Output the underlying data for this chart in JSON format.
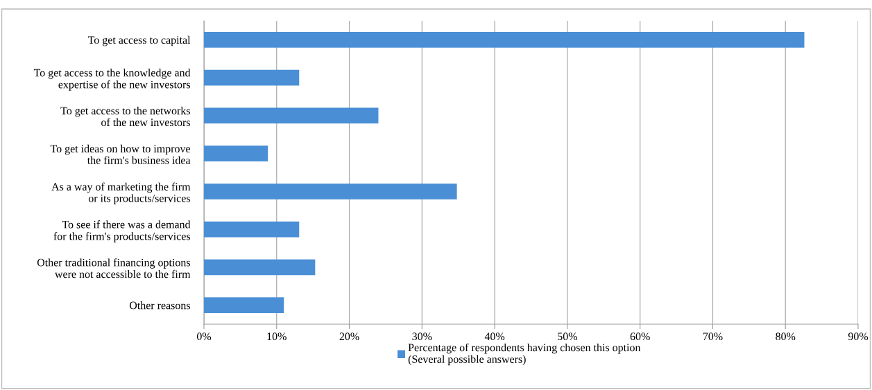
{
  "chart_data": {
    "type": "bar",
    "orientation": "horizontal",
    "categories": [
      "To get access to capital",
      "To get access to the knowledge and\nexpertise of the new investors",
      "To get access to the networks\nof the new investors",
      "To get ideas on how to improve\nthe firm's business idea",
      "As a way of marketing the firm\nor its products/services",
      "To see if there was a demand\nfor the firm's products/services",
      "Other traditional financing options\nwere not accessible to the firm",
      "Other reasons"
    ],
    "series": [
      {
        "name": "Percentage of respondents having chosen this option\n(Several possible answers)",
        "color": "#4a8fd6",
        "values": [
          82.6,
          13.1,
          24.0,
          8.8,
          34.8,
          13.1,
          15.3,
          11.0
        ]
      }
    ],
    "xlim": [
      0,
      90
    ],
    "xticks": [
      {
        "value": 0,
        "label": "0%"
      },
      {
        "value": 10,
        "label": "10%"
      },
      {
        "value": 20,
        "label": "20%"
      },
      {
        "value": 30,
        "label": "30%"
      },
      {
        "value": 40,
        "label": "40%"
      },
      {
        "value": 50,
        "label": "50%"
      },
      {
        "value": 60,
        "label": "60%"
      },
      {
        "value": 70,
        "label": "70%"
      },
      {
        "value": 80,
        "label": "80%"
      },
      {
        "value": 90,
        "label": "90%"
      }
    ],
    "grid": "x",
    "legend": "bottom"
  }
}
